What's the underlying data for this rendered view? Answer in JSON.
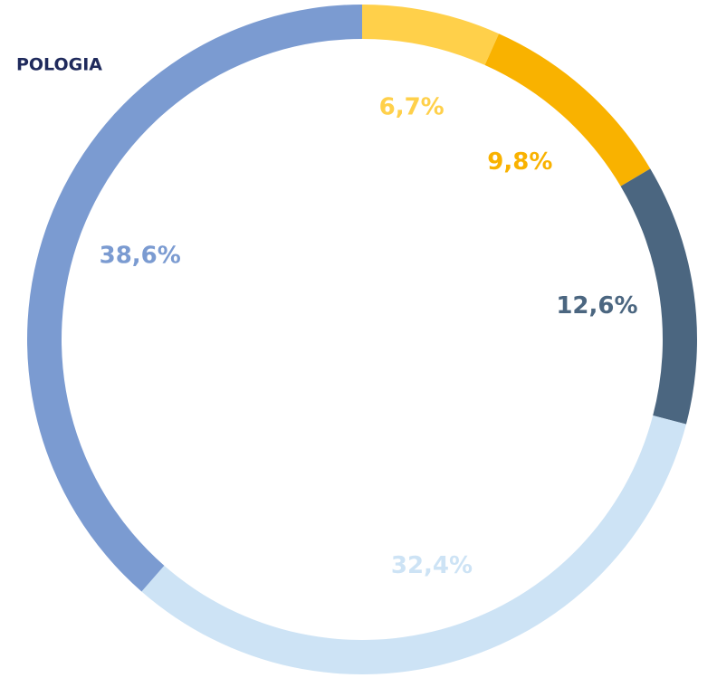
{
  "chart_data": {
    "type": "donut",
    "title": "POLOGIA",
    "categories": [
      null,
      null,
      null,
      null,
      null
    ],
    "values": [
      6.7,
      9.8,
      12.6,
      32.4,
      38.6
    ],
    "value_labels": [
      "6,7%",
      "9,8%",
      "12,6%",
      "32,4%",
      "38,6%"
    ],
    "colors": [
      "#ffd04a",
      "#f9b200",
      "#4b6680",
      "#cde3f5",
      "#7b9bd1"
    ]
  }
}
